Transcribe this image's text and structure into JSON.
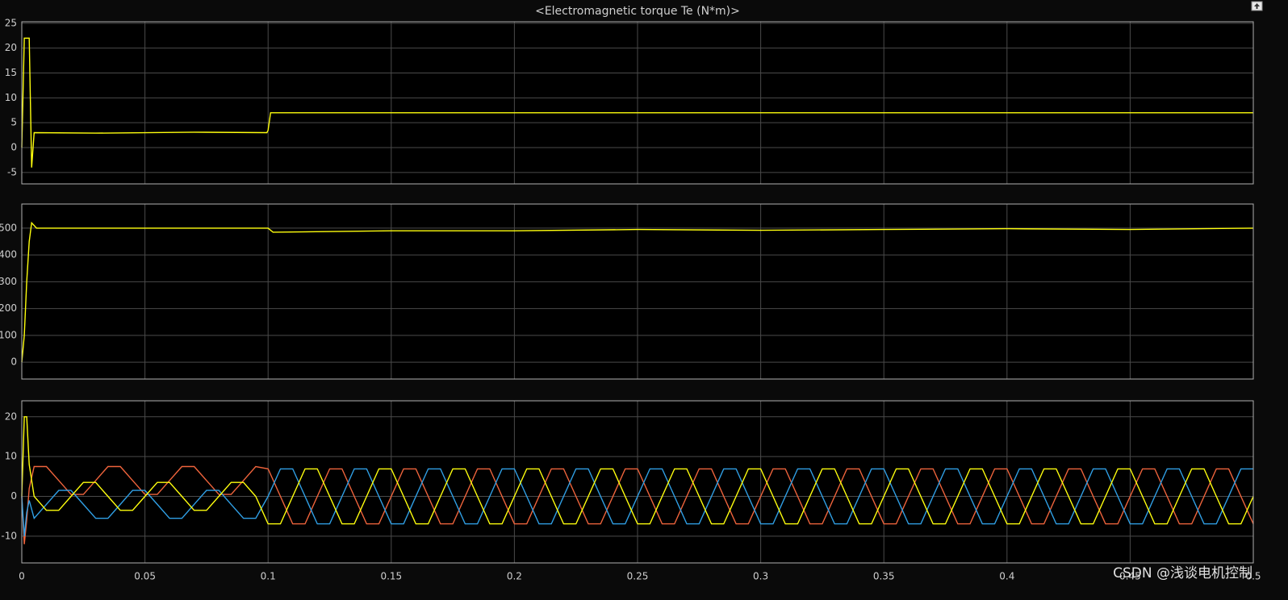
{
  "chart_data": [
    {
      "type": "line",
      "title": "<Electromagnetic torque Te (N*m)>",
      "x": [
        0,
        0.001,
        0.002,
        0.003,
        0.004,
        0.005,
        0.03,
        0.07,
        0.0995,
        0.1,
        0.101,
        0.2,
        0.3,
        0.4,
        0.5
      ],
      "series": [
        {
          "color": "#ffff0d",
          "values": [
            0,
            22,
            22,
            22,
            -4,
            3,
            2.9,
            3.1,
            3,
            3.5,
            7,
            7,
            7,
            7,
            7
          ]
        }
      ],
      "xlim": [
        0,
        0.5
      ],
      "ylim": [
        -7.3,
        25.3
      ],
      "yticks": [
        -5,
        0,
        5,
        10,
        15,
        20,
        25
      ],
      "grid": true
    },
    {
      "type": "line",
      "x": [
        0,
        0.001,
        0.002,
        0.003,
        0.004,
        0.006,
        0.1,
        0.102,
        0.15,
        0.2,
        0.25,
        0.3,
        0.35,
        0.4,
        0.45,
        0.5
      ],
      "series": [
        {
          "color": "#ffff0d",
          "values": [
            0,
            100,
            300,
            450,
            520,
            500,
            500,
            485,
            490,
            490,
            495,
            492,
            495,
            498,
            495,
            500
          ]
        }
      ],
      "xlim": [
        0,
        0.5
      ],
      "ylim": [
        -63,
        590
      ],
      "yticks": [
        0,
        100,
        200,
        300,
        400,
        500
      ],
      "grid": true
    },
    {
      "type": "line",
      "x": [
        0,
        0.001,
        0.002,
        0.003,
        0.005,
        0.01,
        0.015,
        0.02,
        0.025,
        0.03,
        0.035,
        0.04,
        0.045,
        0.05,
        0.055,
        0.06,
        0.065,
        0.07,
        0.075,
        0.08,
        0.085,
        0.09,
        0.095,
        0.1,
        0.105,
        0.11,
        0.115,
        0.12,
        0.125,
        0.13,
        0.135,
        0.14,
        0.145,
        0.15,
        0.155,
        0.16,
        0.165,
        0.17,
        0.175,
        0.18,
        0.185,
        0.19,
        0.195,
        0.2,
        0.205,
        0.21,
        0.215,
        0.22,
        0.225,
        0.23,
        0.235,
        0.24,
        0.245,
        0.25,
        0.255,
        0.26,
        0.265,
        0.27,
        0.275,
        0.28,
        0.285,
        0.29,
        0.295,
        0.3,
        0.305,
        0.31,
        0.315,
        0.32,
        0.325,
        0.33,
        0.335,
        0.34,
        0.345,
        0.35,
        0.355,
        0.36,
        0.365,
        0.37,
        0.375,
        0.38,
        0.385,
        0.39,
        0.395,
        0.4,
        0.405,
        0.41,
        0.415,
        0.42,
        0.425,
        0.43,
        0.435,
        0.44,
        0.445,
        0.45,
        0.455,
        0.46,
        0.465,
        0.47,
        0.475,
        0.48,
        0.485,
        0.49,
        0.495,
        0.5
      ],
      "series": [
        {
          "color": "#f0643c",
          "values": [
            0,
            -12,
            -6,
            2,
            7.5,
            7.5,
            4,
            0.5,
            0.5,
            4,
            7.5,
            7.5,
            4,
            0.5,
            0.5,
            4,
            7.5,
            7.5,
            4,
            0.5,
            0.5,
            4,
            7.5,
            6.9,
            0,
            -6.9,
            -6.9,
            0,
            6.9,
            6.9,
            0,
            -6.9,
            -6.9,
            0,
            6.9,
            6.9,
            0,
            -6.9,
            -6.9,
            0,
            6.9,
            6.9,
            0,
            -6.9,
            -6.9,
            0,
            6.9,
            6.9,
            0,
            -6.9,
            -6.9,
            0,
            6.9,
            6.9,
            0,
            -6.9,
            -6.9,
            0,
            6.9,
            6.9,
            0,
            -6.9,
            -6.9,
            0,
            6.9,
            6.9,
            0,
            -6.9,
            -6.9,
            0,
            6.9,
            6.9,
            0,
            -6.9,
            -6.9,
            0,
            6.9,
            6.9,
            0,
            -6.9,
            -6.9,
            0,
            6.9,
            6.9,
            0,
            -6.9,
            -6.9,
            0,
            6.9,
            6.9,
            0,
            -6.9,
            -6.9,
            0,
            6.9,
            6.9,
            0,
            -6.9,
            -6.9,
            0,
            6.9,
            6.9,
            0,
            -6.9
          ]
        },
        {
          "color": "#30a0e6",
          "values": [
            0,
            -10,
            -4,
            -1,
            -5.5,
            -2,
            1.5,
            1.5,
            -2,
            -5.5,
            -5.5,
            -2,
            1.5,
            1.5,
            -2,
            -5.5,
            -5.5,
            -2,
            1.5,
            1.5,
            -2,
            -5.5,
            -5.5,
            0,
            6.9,
            6.9,
            0,
            -6.9,
            -6.9,
            0,
            6.9,
            6.9,
            0,
            -6.9,
            -6.9,
            0,
            6.9,
            6.9,
            0,
            -6.9,
            -6.9,
            0,
            6.9,
            6.9,
            0,
            -6.9,
            -6.9,
            0,
            6.9,
            6.9,
            0,
            -6.9,
            -6.9,
            0,
            6.9,
            6.9,
            0,
            -6.9,
            -6.9,
            0,
            6.9,
            6.9,
            0,
            -6.9,
            -6.9,
            0,
            6.9,
            6.9,
            0,
            -6.9,
            -6.9,
            0,
            6.9,
            6.9,
            0,
            -6.9,
            -6.9,
            0,
            6.9,
            6.9,
            0,
            -6.9,
            -6.9,
            0,
            6.9,
            6.9,
            0,
            -6.9,
            -6.9,
            0,
            6.9,
            6.9,
            0,
            -6.9,
            -6.9,
            0,
            6.9,
            6.9,
            0,
            -6.9,
            -6.9,
            0,
            6.9,
            6.9
          ]
        },
        {
          "color": "#ffff0d",
          "values": [
            0,
            20,
            20,
            8,
            0,
            -3.5,
            -3.5,
            0,
            3.5,
            3.5,
            0,
            -3.5,
            -3.5,
            0,
            3.5,
            3.5,
            0,
            -3.5,
            -3.5,
            0,
            3.5,
            3.5,
            0,
            -6.9,
            -6.9,
            0,
            6.9,
            6.9,
            0,
            -6.9,
            -6.9,
            0,
            6.9,
            6.9,
            0,
            -6.9,
            -6.9,
            0,
            6.9,
            6.9,
            0,
            -6.9,
            -6.9,
            0,
            6.9,
            6.9,
            0,
            -6.9,
            -6.9,
            0,
            6.9,
            6.9,
            0,
            -6.9,
            -6.9,
            0,
            6.9,
            6.9,
            0,
            -6.9,
            -6.9,
            0,
            6.9,
            6.9,
            0,
            -6.9,
            -6.9,
            0,
            6.9,
            6.9,
            0,
            -6.9,
            -6.9,
            0,
            6.9,
            6.9,
            0,
            -6.9,
            -6.9,
            0,
            6.9,
            6.9,
            0,
            -6.9,
            -6.9,
            0,
            6.9,
            6.9,
            0,
            -6.9,
            -6.9,
            0,
            6.9,
            6.9,
            0,
            -6.9,
            -6.9,
            0,
            6.9,
            6.9,
            0,
            -6.9,
            -6.9,
            0
          ]
        }
      ],
      "xlim": [
        0,
        0.5
      ],
      "ylim": [
        -16.7,
        24
      ],
      "yticks": [
        -10,
        0,
        10,
        20
      ],
      "xticks": [
        0,
        0.05,
        0.1,
        0.15,
        0.2,
        0.25,
        0.3,
        0.35,
        0.4,
        0.45,
        0.5
      ],
      "grid": true
    }
  ],
  "watermark": "CSDN @浅谈电机控制"
}
